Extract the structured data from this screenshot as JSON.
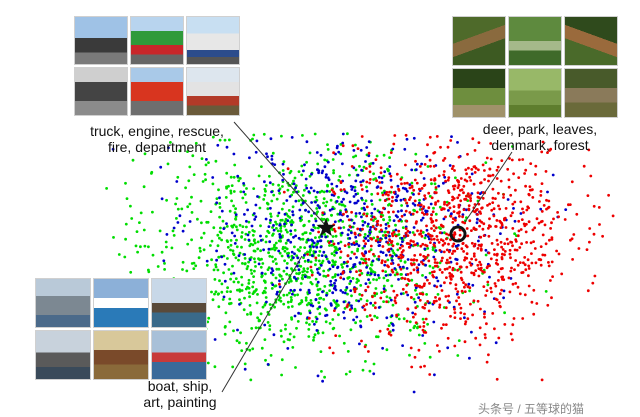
{
  "clusters": {
    "truck": {
      "caption_line1": "truck, engine, rescue,",
      "caption_line2": "fire, department"
    },
    "deer": {
      "caption_line1": "deer, park, leaves,",
      "caption_line2": "denmark, forest"
    },
    "boat": {
      "caption_line1": "boat, ship,",
      "caption_line2": "art, painting"
    }
  },
  "colors": {
    "series_a": "#00dd00",
    "series_b": "#0000cc",
    "series_c": "#ee0000",
    "centroid_star": "#111111",
    "centroid_circle": "#111111",
    "leader_lines": "#333333"
  },
  "watermark": "头条号 / 五等球的猫"
}
